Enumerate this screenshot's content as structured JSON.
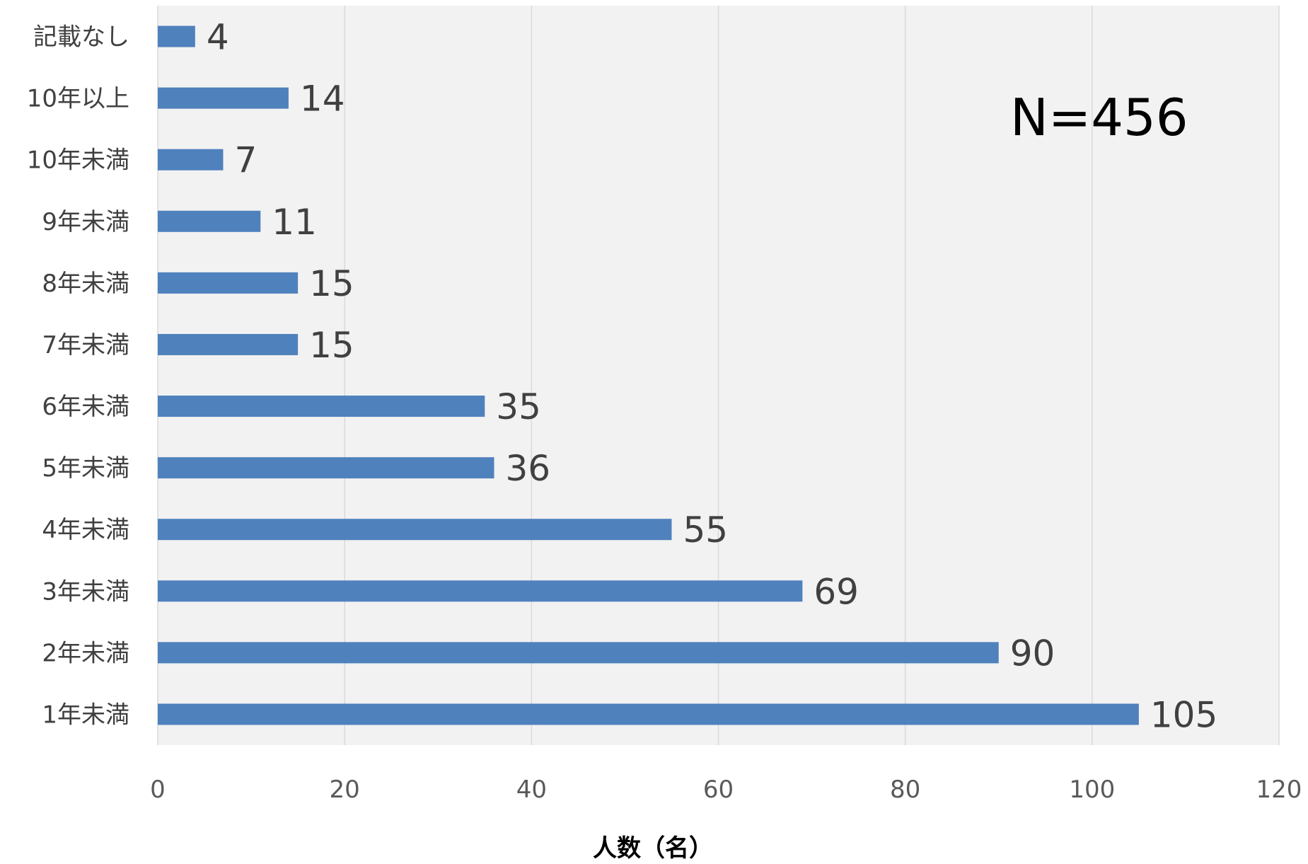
{
  "chart_data": {
    "type": "bar",
    "orientation": "horizontal",
    "categories": [
      "記載なし",
      "10年以上",
      "10年未満",
      "9年未満",
      "8年未満",
      "7年未満",
      "6年未満",
      "5年未満",
      "4年未満",
      "3年未満",
      "2年未満",
      "1年未満"
    ],
    "values": [
      4,
      14,
      7,
      11,
      15,
      15,
      35,
      36,
      55,
      69,
      90,
      105
    ],
    "data_labels": [
      "4",
      "14",
      "7",
      "11",
      "15",
      "15",
      "35",
      "36",
      "55",
      "69",
      "90",
      "105"
    ],
    "xlabel": "人数（名）",
    "ylabel": "",
    "xlim": [
      0,
      120
    ],
    "xticks": [
      0,
      20,
      40,
      60,
      80,
      100,
      120
    ],
    "xtick_labels": [
      "0",
      "20",
      "40",
      "60",
      "80",
      "100",
      "120"
    ],
    "annotation": "N=456",
    "grid": true,
    "colors": {
      "bar": "#4f81bd",
      "plot_background": "#f2f2f2",
      "gridline": "#d9d9d9"
    }
  }
}
